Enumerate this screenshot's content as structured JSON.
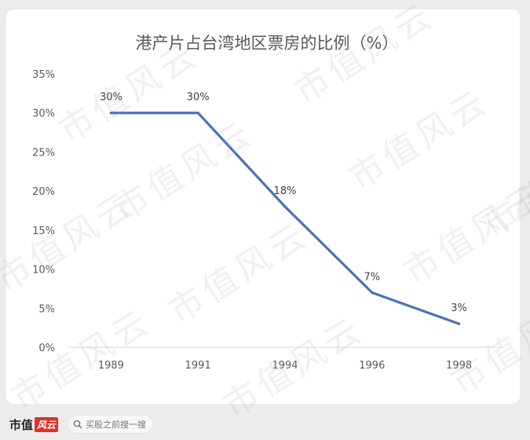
{
  "chart_data": {
    "type": "line",
    "title": "港产片占台湾地区票房的比例（%）",
    "categories": [
      "1989",
      "1991",
      "1994",
      "1996",
      "1998"
    ],
    "series": [
      {
        "values": [
          30,
          30,
          18,
          7,
          3
        ],
        "labels": [
          "30%",
          "30%",
          "18%",
          "7%",
          "3%"
        ]
      }
    ],
    "y_ticks": [
      "0%",
      "5%",
      "10%",
      "15%",
      "20%",
      "25%",
      "30%",
      "35%"
    ],
    "ylim": [
      0,
      35
    ],
    "grid": false,
    "legend": "none",
    "line_color": "#4a72b8"
  },
  "watermark": "市值风云",
  "footer": {
    "brand_text": "市值",
    "brand_badge": "风云",
    "search_placeholder": "买股之前搜一搜"
  }
}
